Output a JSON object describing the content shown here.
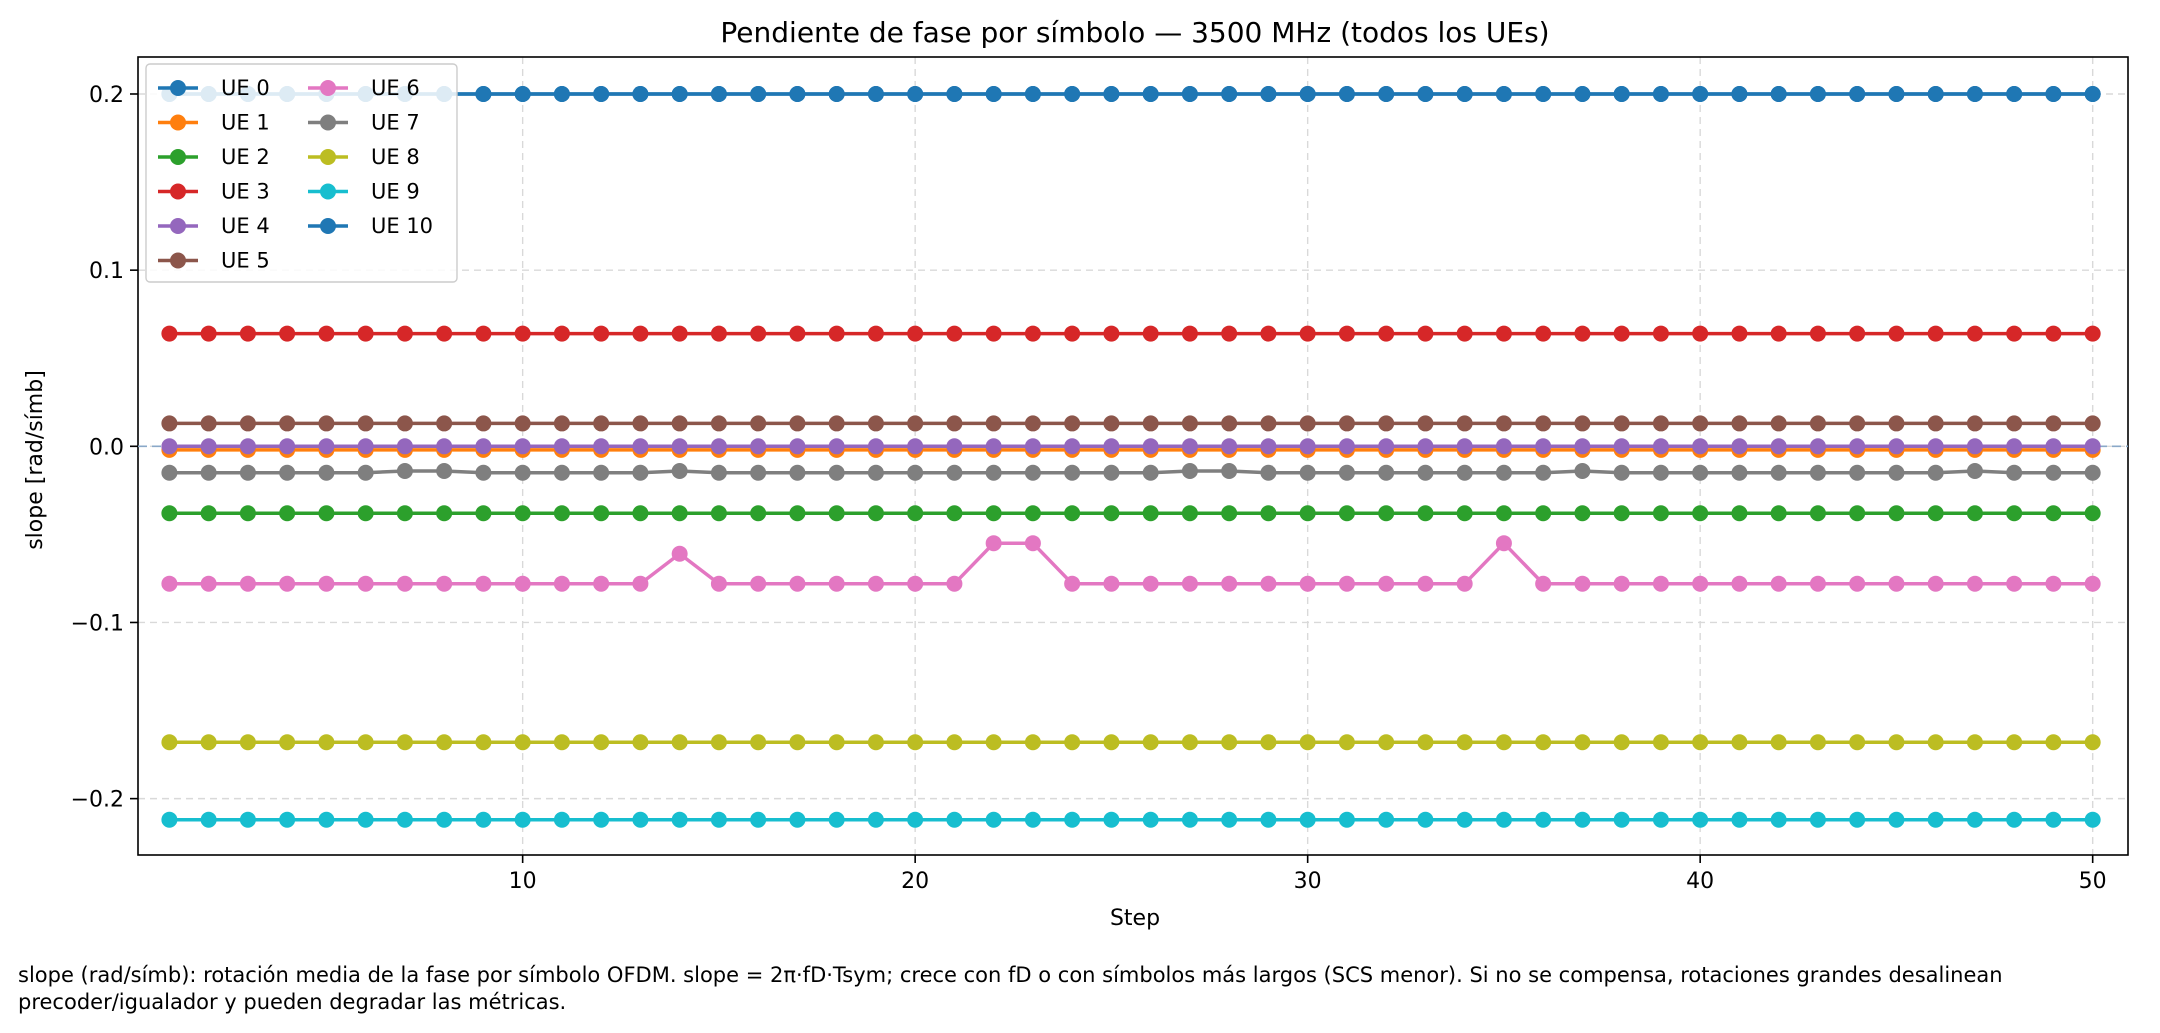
{
  "chart_data": {
    "type": "line",
    "title": "Pendiente de fase por símbolo — 3500 MHz (todos los UEs)",
    "xlabel": "Step",
    "ylabel": "slope [rad/símb]",
    "xlim": [
      0.2,
      50.9
    ],
    "ylim": [
      -0.232,
      0.221
    ],
    "xticks": [
      10,
      20,
      30,
      40,
      50
    ],
    "yticks": [
      0.2,
      0.1,
      0.0,
      -0.1,
      -0.2
    ],
    "ytick_labels": [
      "0.2",
      "0.1",
      "0.0",
      "−0.1",
      "−0.2"
    ],
    "grid": true,
    "legend_position": "top-left",
    "reference_line": {
      "y": 0.0,
      "style": "dashed",
      "color": "#8aa8c8"
    },
    "x_start": 1,
    "x_end": 50,
    "series": [
      {
        "name": "UE 0",
        "color": "#1f77b4",
        "value": 0.2
      },
      {
        "name": "UE 1",
        "color": "#ff7f0e",
        "value": -0.002
      },
      {
        "name": "UE 2",
        "color": "#2ca02c",
        "value": -0.038
      },
      {
        "name": "UE 3",
        "color": "#d62728",
        "value": 0.064
      },
      {
        "name": "UE 4",
        "color": "#9467bd",
        "value": 0.0
      },
      {
        "name": "UE 5",
        "color": "#8c564b",
        "value": 0.013
      },
      {
        "name": "UE 6",
        "color": "#e377c2",
        "value": -0.078,
        "overrides": {
          "14": -0.061,
          "22": -0.055,
          "23": -0.055,
          "35": -0.055
        }
      },
      {
        "name": "UE 7",
        "color": "#7f7f7f",
        "value": -0.015,
        "overrides": {
          "7": -0.014,
          "8": -0.014,
          "14": -0.014,
          "27": -0.014,
          "28": -0.014,
          "37": -0.014,
          "47": -0.014
        }
      },
      {
        "name": "UE 8",
        "color": "#bcbd22",
        "value": -0.168
      },
      {
        "name": "UE 9",
        "color": "#17becf",
        "value": -0.212
      },
      {
        "name": "UE 10",
        "color": "#1f77b4",
        "value": 0.2
      }
    ]
  },
  "caption": {
    "line1": "slope (rad/símb): rotación media de la fase por símbolo OFDM. slope = 2π·fD·Tsym; crece con fD o con símbolos más largos (SCS menor). Si no se compensa, rotaciones grandes desalinean",
    "line2": "precoder/igualador y pueden degradar las métricas."
  }
}
